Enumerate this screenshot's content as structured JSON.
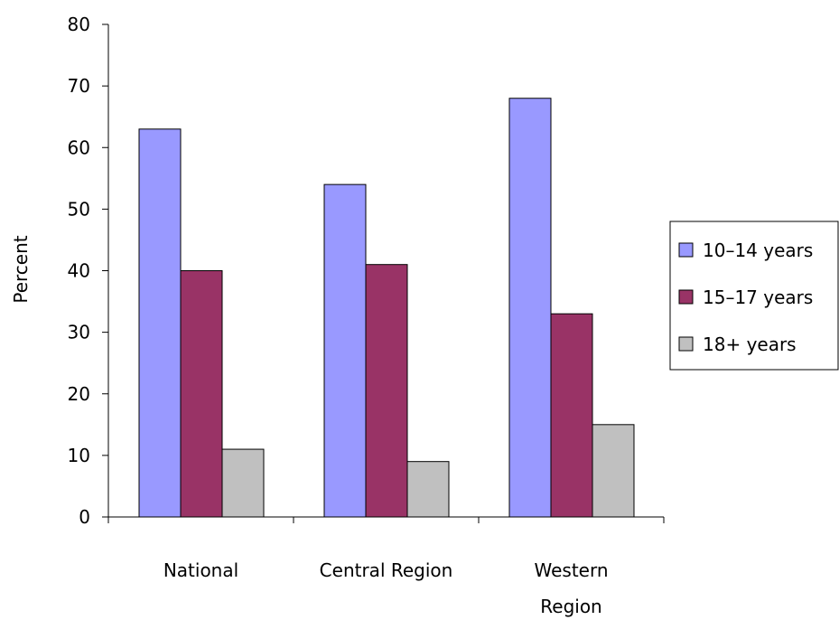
{
  "chart_data": {
    "type": "bar",
    "title": "",
    "xlabel": "",
    "ylabel": "Percent",
    "ylim": [
      0,
      80
    ],
    "yticks": [
      0,
      10,
      20,
      30,
      40,
      50,
      60,
      70,
      80
    ],
    "categories": [
      [
        "National"
      ],
      [
        "Central Region"
      ],
      [
        "Western",
        "Region"
      ]
    ],
    "series": [
      {
        "name": "10–14 years",
        "color": "#9999ff",
        "values": [
          63,
          54,
          68
        ]
      },
      {
        "name": "15–17 years",
        "color": "#993366",
        "values": [
          40,
          41,
          33
        ]
      },
      {
        "name": "18+ years",
        "color": "#c0c0c0",
        "values": [
          11,
          9,
          15
        ]
      }
    ],
    "legend_position": "right",
    "grid": false
  }
}
